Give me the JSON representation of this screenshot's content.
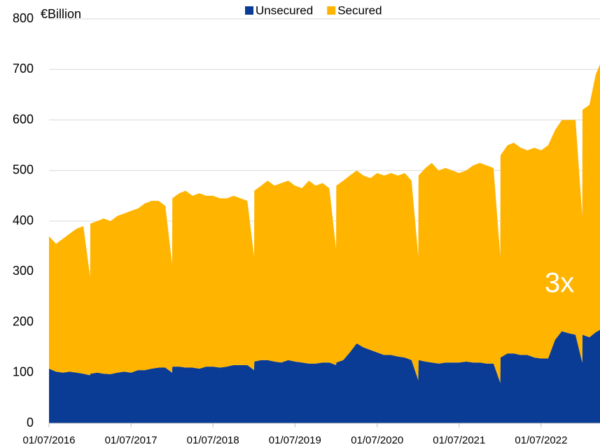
{
  "chart_data": {
    "type": "stacked_area",
    "y_label": "€Billion",
    "annotation": "3x",
    "x": [
      "01/07/2016",
      "01/08/2016",
      "01/09/2016",
      "01/10/2016",
      "01/11/2016",
      "01/12/2016",
      "31/12/2016",
      "01/01/2017",
      "01/02/2017",
      "01/03/2017",
      "01/04/2017",
      "01/05/2017",
      "01/06/2017",
      "01/07/2017",
      "01/08/2017",
      "01/09/2017",
      "01/10/2017",
      "01/11/2017",
      "01/12/2017",
      "31/12/2017",
      "01/01/2018",
      "01/02/2018",
      "01/03/2018",
      "01/04/2018",
      "01/05/2018",
      "01/06/2018",
      "01/07/2018",
      "01/08/2018",
      "01/09/2018",
      "01/10/2018",
      "01/11/2018",
      "01/12/2018",
      "31/12/2018",
      "01/01/2019",
      "01/02/2019",
      "01/03/2019",
      "01/04/2019",
      "01/05/2019",
      "01/06/2019",
      "01/07/2019",
      "01/08/2019",
      "01/09/2019",
      "01/10/2019",
      "01/11/2019",
      "01/12/2019",
      "31/12/2019",
      "01/01/2020",
      "01/02/2020",
      "01/03/2020",
      "01/04/2020",
      "01/05/2020",
      "01/06/2020",
      "01/07/2020",
      "01/08/2020",
      "01/09/2020",
      "01/10/2020",
      "01/11/2020",
      "01/12/2020",
      "31/12/2020",
      "01/01/2021",
      "01/02/2021",
      "01/03/2021",
      "01/04/2021",
      "01/05/2021",
      "01/06/2021",
      "01/07/2021",
      "01/08/2021",
      "01/09/2021",
      "01/10/2021",
      "01/11/2021",
      "01/12/2021",
      "31/12/2021",
      "01/01/2022",
      "01/02/2022",
      "01/03/2022",
      "01/04/2022",
      "01/05/2022",
      "01/06/2022",
      "01/07/2022",
      "01/08/2022",
      "01/09/2022",
      "01/10/2022",
      "01/11/2022",
      "01/12/2022",
      "31/12/2022",
      "01/01/2023",
      "01/02/2023",
      "01/03/2023",
      "20/03/2023"
    ],
    "series": [
      {
        "name": "Unsecured",
        "color": "#0a3c96",
        "values": [
          108,
          102,
          100,
          102,
          100,
          98,
          95,
          98,
          100,
          98,
          97,
          100,
          102,
          100,
          105,
          105,
          108,
          110,
          110,
          100,
          112,
          112,
          110,
          110,
          108,
          112,
          112,
          110,
          112,
          115,
          115,
          115,
          105,
          122,
          125,
          125,
          122,
          120,
          125,
          122,
          120,
          118,
          118,
          120,
          120,
          115,
          120,
          125,
          140,
          158,
          150,
          145,
          140,
          135,
          135,
          132,
          130,
          125,
          85,
          125,
          122,
          120,
          118,
          120,
          120,
          120,
          122,
          120,
          120,
          118,
          118,
          80,
          130,
          138,
          138,
          135,
          135,
          130,
          128,
          128,
          165,
          182,
          178,
          175,
          120,
          175,
          170,
          180,
          185
        ]
      },
      {
        "name": "Secured",
        "color": "#ffb400",
        "values": [
          262,
          253,
          265,
          273,
          285,
          292,
          195,
          297,
          300,
          307,
          303,
          310,
          313,
          320,
          320,
          330,
          332,
          330,
          320,
          215,
          333,
          343,
          350,
          340,
          347,
          338,
          338,
          335,
          333,
          335,
          330,
          325,
          225,
          338,
          345,
          355,
          348,
          355,
          355,
          348,
          345,
          362,
          352,
          355,
          345,
          230,
          350,
          355,
          350,
          342,
          340,
          340,
          355,
          355,
          360,
          358,
          365,
          355,
          245,
          365,
          383,
          395,
          382,
          385,
          380,
          375,
          378,
          390,
          395,
          392,
          387,
          250,
          400,
          412,
          417,
          410,
          405,
          415,
          412,
          422,
          415,
          418,
          422,
          425,
          290,
          445,
          460,
          510,
          525
        ]
      }
    ],
    "xlim": [
      "01/07/2016",
      "20/03/2023"
    ],
    "xticks": [
      "01/07/2016",
      "01/07/2017",
      "01/07/2018",
      "01/07/2019",
      "01/07/2020",
      "01/07/2021",
      "01/07/2022"
    ],
    "ylim": [
      0,
      800
    ],
    "yticks": [
      0,
      100,
      200,
      300,
      400,
      500,
      600,
      700,
      800
    ],
    "grid": true,
    "legend": "top"
  }
}
